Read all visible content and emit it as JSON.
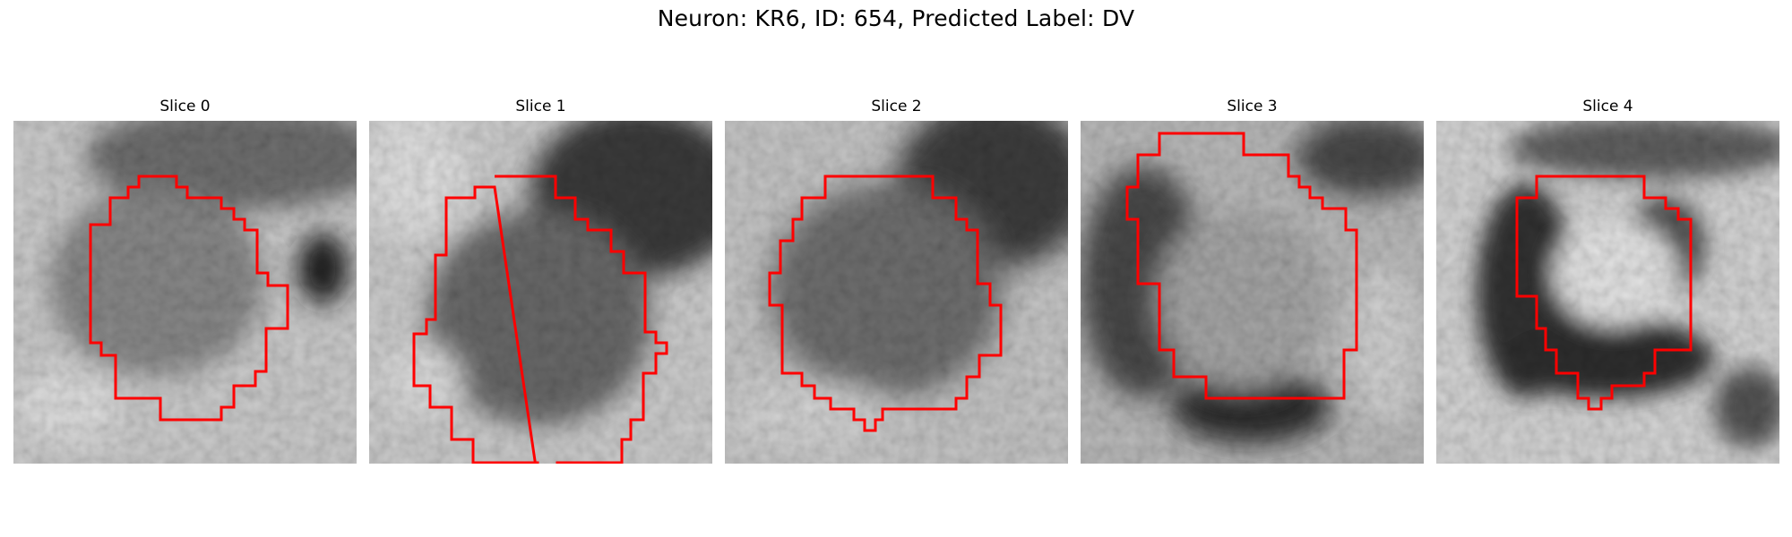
{
  "figure": {
    "title": "Neuron: KR6, ID: 654, Predicted Label: DV"
  },
  "slices": [
    {
      "title": "Slice 0",
      "image": "grayscale-em-patch"
    },
    {
      "title": "Slice 1",
      "image": "grayscale-em-patch"
    },
    {
      "title": "Slice 2",
      "image": "grayscale-em-patch"
    },
    {
      "title": "Slice 3",
      "image": "grayscale-em-patch"
    },
    {
      "title": "Slice 4",
      "image": "grayscale-em-patch"
    }
  ],
  "colors": {
    "contour": "#ff0000",
    "background": "#ffffff"
  }
}
